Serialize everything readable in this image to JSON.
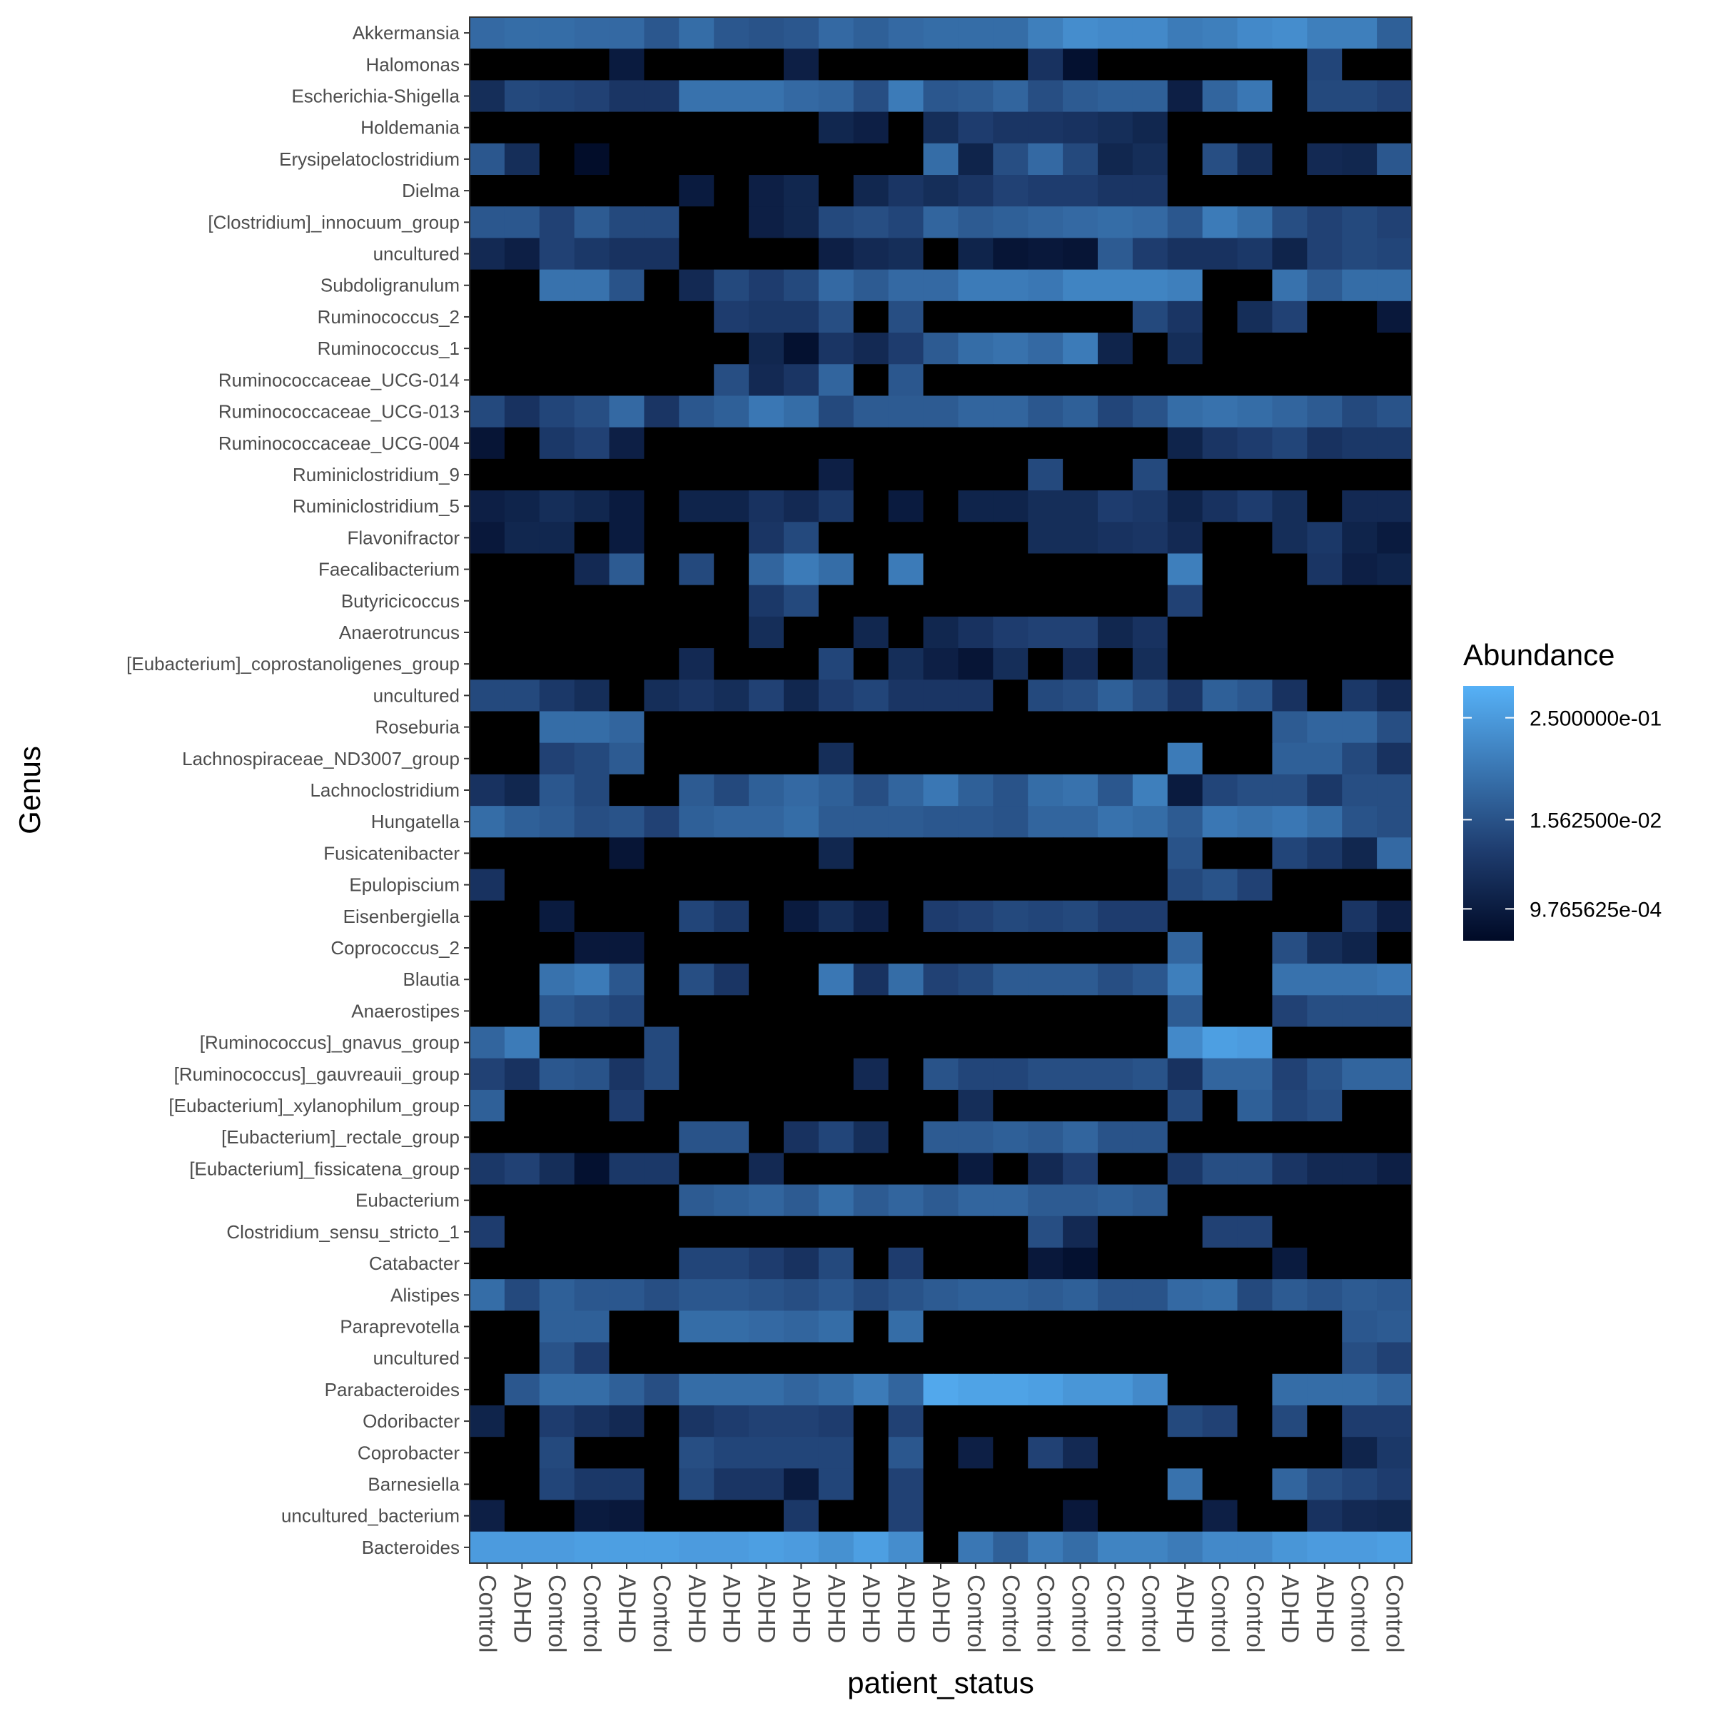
{
  "chart_data": {
    "type": "heatmap",
    "xlabel": "patient_status",
    "ylabel": "Genus",
    "x_categories": [
      "Control",
      "ADHD",
      "Control",
      "Control",
      "ADHD",
      "Control",
      "ADHD",
      "ADHD",
      "ADHD",
      "ADHD",
      "ADHD",
      "ADHD",
      "ADHD",
      "ADHD",
      "Control",
      "Control",
      "Control",
      "Control",
      "Control",
      "Control",
      "ADHD",
      "Control",
      "Control",
      "ADHD",
      "ADHD",
      "Control",
      "Control"
    ],
    "y_categories": [
      "Akkermansia",
      "Halomonas",
      "Escherichia-Shigella",
      "Holdemania",
      "Erysipelatoclostridium",
      "Dielma",
      "[Clostridium]_innocuum_group",
      "uncultured",
      "Subdoligranulum",
      "Ruminococcus_2",
      "Ruminococcus_1",
      "Ruminococcaceae_UCG-014",
      "Ruminococcaceae_UCG-013",
      "Ruminococcaceae_UCG-004",
      "Ruminiclostridium_9",
      "Ruminiclostridium_5",
      "Flavonifractor",
      "Faecalibacterium",
      "Butyricicoccus",
      "Anaerotruncus",
      "[Eubacterium]_coprostanoligenes_group",
      "uncultured",
      "Roseburia",
      "Lachnospiraceae_ND3007_group",
      "Lachnoclostridium",
      "Hungatella",
      "Fusicatenibacter",
      "Epulopiscium",
      "Eisenbergiella",
      "Coprococcus_2",
      "Blautia",
      "Anaerostipes",
      "[Ruminococcus]_gnavus_group",
      "[Ruminococcus]_gauvreauii_group",
      "[Eubacterium]_xylanophilum_group",
      "[Eubacterium]_rectale_group",
      "[Eubacterium]_fissicatena_group",
      "Eubacterium",
      "Clostridium_sensu_stricto_1",
      "Catabacter",
      "Alistipes",
      "Paraprevotella",
      "uncultured",
      "Parabacteroides",
      "Odoribacter",
      "Coprobacter",
      "Barnesiella",
      "uncultured_bacterium",
      "Bacteroides"
    ],
    "value_scale": "log2 intensity, 0 = absent (black), ~0.97 = 2.5e-01",
    "color_low": "#132b43",
    "color_high": "#56b1f7",
    "absent_color": "#000000",
    "values": [
      [
        0.6,
        0.62,
        0.62,
        0.6,
        0.6,
        0.5,
        0.62,
        0.5,
        0.48,
        0.5,
        0.6,
        0.55,
        0.6,
        0.62,
        0.62,
        0.62,
        0.72,
        0.8,
        0.78,
        0.78,
        0.7,
        0.72,
        0.78,
        0.8,
        0.72,
        0.72,
        0.55
      ],
      [
        0,
        0,
        0,
        0,
        0.12,
        0,
        0,
        0,
        0,
        0.15,
        0,
        0,
        0,
        0,
        0,
        0,
        0.28,
        0.05,
        0,
        0,
        0,
        0,
        0,
        0,
        0.4,
        0,
        0
      ],
      [
        0.25,
        0.42,
        0.4,
        0.38,
        0.3,
        0.3,
        0.65,
        0.65,
        0.65,
        0.6,
        0.58,
        0.45,
        0.7,
        0.5,
        0.52,
        0.58,
        0.45,
        0.52,
        0.55,
        0.55,
        0.15,
        0.58,
        0.68,
        0,
        0.42,
        0.42,
        0.38
      ],
      [
        0,
        0,
        0,
        0,
        0,
        0,
        0,
        0,
        0,
        0,
        0.2,
        0.15,
        0,
        0.25,
        0.35,
        0.3,
        0.3,
        0.28,
        0.25,
        0.2,
        0,
        0,
        0,
        0,
        0,
        0,
        0
      ],
      [
        0.5,
        0.25,
        0,
        0.02,
        0,
        0,
        0,
        0,
        0,
        0,
        0,
        0,
        0,
        0.62,
        0.18,
        0.45,
        0.6,
        0.42,
        0.2,
        0.25,
        0,
        0.45,
        0.25,
        0,
        0.22,
        0.2,
        0.5
      ],
      [
        0,
        0,
        0,
        0,
        0,
        0,
        0.12,
        0,
        0.15,
        0.2,
        0,
        0.2,
        0.3,
        0.25,
        0.3,
        0.38,
        0.35,
        0.35,
        0.3,
        0.3,
        0,
        0,
        0,
        0,
        0,
        0,
        0
      ],
      [
        0.5,
        0.5,
        0.38,
        0.52,
        0.42,
        0.42,
        0,
        0,
        0.15,
        0.2,
        0.42,
        0.45,
        0.4,
        0.58,
        0.52,
        0.55,
        0.58,
        0.6,
        0.62,
        0.6,
        0.5,
        0.7,
        0.62,
        0.45,
        0.38,
        0.42,
        0.38
      ],
      [
        0.22,
        0.15,
        0.38,
        0.32,
        0.28,
        0.28,
        0,
        0,
        0,
        0,
        0.15,
        0.22,
        0.25,
        0,
        0.18,
        0.08,
        0.1,
        0.08,
        0.52,
        0.35,
        0.28,
        0.28,
        0.32,
        0.18,
        0.38,
        0.42,
        0.4
      ],
      [
        0,
        0,
        0.65,
        0.65,
        0.48,
        0,
        0.22,
        0.42,
        0.35,
        0.42,
        0.6,
        0.52,
        0.6,
        0.6,
        0.7,
        0.7,
        0.68,
        0.75,
        0.75,
        0.75,
        0.72,
        0,
        0,
        0.65,
        0.52,
        0.62,
        0.62
      ],
      [
        0,
        0,
        0,
        0,
        0,
        0,
        0,
        0.35,
        0.32,
        0.32,
        0.45,
        0,
        0.45,
        0,
        0,
        0,
        0,
        0,
        0,
        0.42,
        0.3,
        0,
        0.25,
        0.38,
        0,
        0,
        0.1
      ],
      [
        0,
        0,
        0,
        0,
        0,
        0,
        0,
        0,
        0.2,
        0.05,
        0.3,
        0.22,
        0.35,
        0.52,
        0.62,
        0.65,
        0.6,
        0.7,
        0.18,
        0,
        0.25,
        0,
        0,
        0,
        0,
        0,
        0
      ],
      [
        0,
        0,
        0,
        0,
        0,
        0,
        0,
        0.45,
        0.22,
        0.3,
        0.58,
        0,
        0.5,
        0,
        0,
        0,
        0,
        0,
        0,
        0,
        0,
        0,
        0,
        0,
        0,
        0,
        0
      ],
      [
        0.42,
        0.28,
        0.4,
        0.45,
        0.6,
        0.3,
        0.5,
        0.55,
        0.68,
        0.62,
        0.42,
        0.52,
        0.52,
        0.52,
        0.58,
        0.58,
        0.5,
        0.55,
        0.4,
        0.48,
        0.62,
        0.65,
        0.62,
        0.58,
        0.52,
        0.42,
        0.48
      ],
      [
        0.08,
        0,
        0.32,
        0.38,
        0.15,
        0,
        0,
        0,
        0,
        0,
        0,
        0,
        0,
        0,
        0,
        0,
        0,
        0,
        0,
        0,
        0.18,
        0.3,
        0.35,
        0.4,
        0.28,
        0.32,
        0.32
      ],
      [
        0,
        0,
        0,
        0,
        0,
        0,
        0,
        0,
        0,
        0,
        0.15,
        0,
        0,
        0,
        0,
        0,
        0.42,
        0,
        0,
        0.42,
        0,
        0,
        0,
        0,
        0,
        0,
        0
      ],
      [
        0.15,
        0.18,
        0.25,
        0.2,
        0.12,
        0,
        0.18,
        0.18,
        0.28,
        0.22,
        0.32,
        0,
        0.12,
        0,
        0.18,
        0.18,
        0.25,
        0.25,
        0.35,
        0.32,
        0.18,
        0.28,
        0.35,
        0.25,
        0,
        0.22,
        0.22
      ],
      [
        0.1,
        0.2,
        0.2,
        0,
        0.12,
        0,
        0,
        0,
        0.3,
        0.42,
        0,
        0,
        0,
        0,
        0,
        0,
        0.25,
        0.25,
        0.28,
        0.3,
        0.22,
        0,
        0,
        0.25,
        0.32,
        0.18,
        0.12
      ],
      [
        0,
        0,
        0,
        0.22,
        0.52,
        0,
        0.42,
        0,
        0.58,
        0.7,
        0.62,
        0,
        0.7,
        0,
        0,
        0,
        0,
        0,
        0,
        0,
        0.72,
        0,
        0,
        0,
        0.3,
        0.15,
        0.18
      ],
      [
        0,
        0,
        0,
        0,
        0,
        0,
        0,
        0,
        0.32,
        0.42,
        0,
        0,
        0,
        0,
        0,
        0,
        0,
        0,
        0,
        0,
        0.38,
        0,
        0,
        0,
        0,
        0,
        0
      ],
      [
        0,
        0,
        0,
        0,
        0,
        0,
        0,
        0,
        0.25,
        0,
        0,
        0.2,
        0,
        0.2,
        0.28,
        0.35,
        0.38,
        0.38,
        0.2,
        0.28,
        0,
        0,
        0,
        0,
        0,
        0,
        0
      ],
      [
        0,
        0,
        0,
        0,
        0,
        0,
        0.22,
        0,
        0,
        0,
        0.4,
        0,
        0.25,
        0.15,
        0.08,
        0.25,
        0,
        0.22,
        0,
        0.25,
        0,
        0,
        0,
        0,
        0,
        0,
        0
      ],
      [
        0.42,
        0.42,
        0.32,
        0.25,
        0,
        0.25,
        0.3,
        0.25,
        0.38,
        0.2,
        0.35,
        0.4,
        0.3,
        0.3,
        0.3,
        0,
        0.42,
        0.45,
        0.55,
        0.45,
        0.3,
        0.55,
        0.5,
        0.28,
        0,
        0.32,
        0.22
      ],
      [
        0,
        0,
        0.62,
        0.62,
        0.58,
        0,
        0,
        0,
        0,
        0,
        0,
        0,
        0,
        0,
        0,
        0,
        0,
        0,
        0,
        0,
        0,
        0,
        0,
        0.52,
        0.58,
        0.58,
        0.45
      ],
      [
        0,
        0,
        0.38,
        0.42,
        0.52,
        0,
        0,
        0,
        0,
        0,
        0.25,
        0,
        0,
        0,
        0,
        0,
        0,
        0,
        0,
        0,
        0.7,
        0,
        0,
        0.55,
        0.55,
        0.42,
        0.28
      ],
      [
        0.28,
        0.2,
        0.5,
        0.42,
        0,
        0,
        0.52,
        0.42,
        0.55,
        0.6,
        0.55,
        0.45,
        0.58,
        0.68,
        0.55,
        0.48,
        0.62,
        0.65,
        0.5,
        0.72,
        0.12,
        0.4,
        0.45,
        0.45,
        0.32,
        0.45,
        0.45
      ],
      [
        0.62,
        0.55,
        0.52,
        0.45,
        0.48,
        0.38,
        0.55,
        0.58,
        0.58,
        0.62,
        0.52,
        0.52,
        0.52,
        0.5,
        0.5,
        0.48,
        0.58,
        0.58,
        0.65,
        0.62,
        0.52,
        0.68,
        0.65,
        0.68,
        0.62,
        0.48,
        0.45
      ],
      [
        0,
        0,
        0,
        0,
        0.08,
        0,
        0,
        0,
        0,
        0,
        0.2,
        0,
        0,
        0,
        0,
        0,
        0,
        0,
        0,
        0,
        0.48,
        0,
        0,
        0.4,
        0.32,
        0.2,
        0.6
      ],
      [
        0.28,
        0,
        0,
        0,
        0,
        0,
        0,
        0,
        0,
        0,
        0,
        0,
        0,
        0,
        0,
        0,
        0,
        0,
        0,
        0,
        0.42,
        0.48,
        0.38,
        0,
        0,
        0,
        0
      ],
      [
        0,
        0,
        0.12,
        0,
        0,
        0,
        0.4,
        0.32,
        0,
        0.12,
        0.25,
        0.15,
        0,
        0.35,
        0.38,
        0.42,
        0.4,
        0.42,
        0.35,
        0.35,
        0,
        0,
        0,
        0,
        0,
        0.3,
        0.15
      ],
      [
        0,
        0,
        0,
        0.1,
        0.1,
        0,
        0,
        0,
        0,
        0,
        0,
        0,
        0,
        0,
        0,
        0,
        0,
        0,
        0,
        0,
        0.58,
        0,
        0,
        0.45,
        0.25,
        0.18,
        0
      ],
      [
        0,
        0,
        0.65,
        0.7,
        0.5,
        0,
        0.45,
        0.3,
        0,
        0,
        0.68,
        0.28,
        0.62,
        0.38,
        0.42,
        0.52,
        0.52,
        0.52,
        0.45,
        0.5,
        0.72,
        0,
        0,
        0.65,
        0.65,
        0.65,
        0.68
      ],
      [
        0,
        0,
        0.5,
        0.45,
        0.4,
        0,
        0,
        0,
        0,
        0,
        0,
        0,
        0,
        0,
        0,
        0,
        0,
        0,
        0,
        0,
        0.52,
        0,
        0,
        0.38,
        0.45,
        0.45,
        0.45
      ],
      [
        0.58,
        0.7,
        0,
        0,
        0,
        0.42,
        0,
        0,
        0,
        0,
        0,
        0,
        0,
        0,
        0,
        0,
        0,
        0,
        0,
        0,
        0.78,
        0.9,
        0.88,
        0,
        0,
        0,
        0
      ],
      [
        0.38,
        0.28,
        0.5,
        0.48,
        0.3,
        0.42,
        0,
        0,
        0,
        0,
        0,
        0.22,
        0,
        0.48,
        0.4,
        0.4,
        0.45,
        0.45,
        0.45,
        0.48,
        0.28,
        0.58,
        0.58,
        0.38,
        0.48,
        0.58,
        0.58
      ],
      [
        0.55,
        0,
        0,
        0,
        0.35,
        0,
        0,
        0,
        0,
        0,
        0,
        0,
        0,
        0,
        0.25,
        0,
        0,
        0,
        0,
        0,
        0.42,
        0,
        0.55,
        0.4,
        0.45,
        0,
        0
      ],
      [
        0,
        0,
        0,
        0,
        0,
        0,
        0.48,
        0.48,
        0,
        0.28,
        0.4,
        0.25,
        0,
        0.52,
        0.52,
        0.55,
        0.52,
        0.58,
        0.48,
        0.48,
        0,
        0,
        0,
        0,
        0,
        0,
        0
      ],
      [
        0.32,
        0.38,
        0.25,
        0.05,
        0.32,
        0.32,
        0,
        0,
        0.22,
        0,
        0,
        0,
        0,
        0,
        0.12,
        0,
        0.22,
        0.35,
        0,
        0,
        0.32,
        0.45,
        0.45,
        0.3,
        0.22,
        0.22,
        0.15
      ],
      [
        0,
        0,
        0,
        0,
        0,
        0,
        0.52,
        0.55,
        0.58,
        0.52,
        0.62,
        0.52,
        0.58,
        0.52,
        0.58,
        0.58,
        0.52,
        0.52,
        0.55,
        0.52,
        0,
        0,
        0,
        0,
        0,
        0,
        0
      ],
      [
        0.35,
        0,
        0,
        0,
        0,
        0,
        0,
        0,
        0,
        0,
        0,
        0,
        0,
        0,
        0,
        0,
        0.45,
        0.22,
        0,
        0,
        0,
        0.38,
        0.38,
        0,
        0,
        0,
        0
      ],
      [
        0,
        0,
        0,
        0,
        0,
        0,
        0.4,
        0.4,
        0.35,
        0.28,
        0.42,
        0,
        0.35,
        0,
        0,
        0,
        0.1,
        0.05,
        0,
        0,
        0,
        0,
        0,
        0.12,
        0,
        0,
        0
      ],
      [
        0.62,
        0.42,
        0.55,
        0.5,
        0.5,
        0.45,
        0.5,
        0.5,
        0.48,
        0.45,
        0.5,
        0.42,
        0.48,
        0.52,
        0.55,
        0.55,
        0.52,
        0.55,
        0.48,
        0.48,
        0.6,
        0.62,
        0.42,
        0.52,
        0.48,
        0.52,
        0.5
      ],
      [
        0,
        0,
        0.55,
        0.55,
        0,
        0,
        0.62,
        0.62,
        0.6,
        0.58,
        0.62,
        0,
        0.62,
        0,
        0,
        0,
        0,
        0,
        0,
        0,
        0,
        0,
        0,
        0,
        0,
        0.5,
        0.52
      ],
      [
        0,
        0,
        0.48,
        0.35,
        0,
        0,
        0,
        0,
        0,
        0,
        0,
        0,
        0,
        0,
        0,
        0,
        0,
        0,
        0,
        0,
        0,
        0,
        0,
        0,
        0,
        0.45,
        0.38
      ],
      [
        0,
        0.5,
        0.62,
        0.62,
        0.55,
        0.45,
        0.62,
        0.62,
        0.62,
        0.58,
        0.62,
        0.7,
        0.58,
        0.95,
        0.92,
        0.92,
        0.9,
        0.85,
        0.85,
        0.78,
        0,
        0,
        0,
        0.62,
        0.62,
        0.62,
        0.58
      ],
      [
        0.18,
        0,
        0.35,
        0.28,
        0.22,
        0,
        0.3,
        0.35,
        0.38,
        0.38,
        0.35,
        0,
        0.38,
        0,
        0,
        0,
        0,
        0,
        0,
        0,
        0.42,
        0.38,
        0,
        0.42,
        0,
        0.35,
        0.35
      ],
      [
        0,
        0,
        0.42,
        0,
        0,
        0,
        0.45,
        0.4,
        0.4,
        0.4,
        0.4,
        0,
        0.5,
        0,
        0.15,
        0,
        0.38,
        0.22,
        0,
        0,
        0,
        0,
        0,
        0,
        0,
        0.18,
        0.32
      ],
      [
        0,
        0,
        0.4,
        0.32,
        0.32,
        0,
        0.42,
        0.3,
        0.3,
        0.12,
        0.4,
        0,
        0.38,
        0,
        0,
        0,
        0,
        0,
        0,
        0,
        0.65,
        0,
        0,
        0.58,
        0.45,
        0.4,
        0.35
      ],
      [
        0.15,
        0,
        0,
        0.12,
        0.1,
        0,
        0,
        0,
        0,
        0.32,
        0,
        0,
        0.38,
        0,
        0,
        0,
        0,
        0.1,
        0,
        0,
        0,
        0.15,
        0,
        0,
        0.28,
        0.22,
        0.2
      ],
      [
        0.88,
        0.88,
        0.88,
        0.9,
        0.9,
        0.9,
        0.88,
        0.88,
        0.9,
        0.88,
        0.82,
        0.9,
        0.8,
        0,
        0.68,
        0.55,
        0.7,
        0.62,
        0.75,
        0.75,
        0.7,
        0.78,
        0.78,
        0.85,
        0.88,
        0.88,
        0.9
      ]
    ],
    "legend": {
      "title": "Abundance",
      "labels": [
        "2.500000e-01",
        "1.562500e-02",
        "9.765625e-04"
      ],
      "positions": [
        0.875,
        0.475,
        0.125
      ]
    }
  }
}
